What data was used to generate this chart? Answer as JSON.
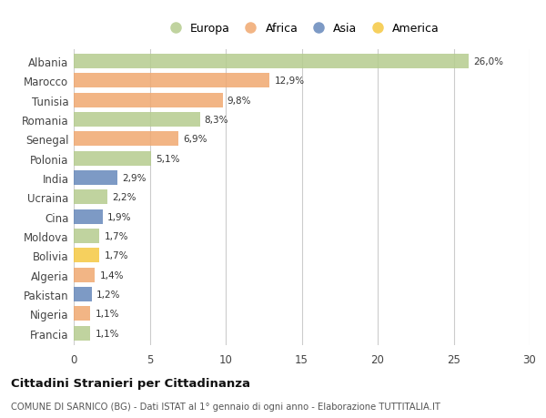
{
  "categories": [
    "Albania",
    "Marocco",
    "Tunisia",
    "Romania",
    "Senegal",
    "Polonia",
    "India",
    "Ucraina",
    "Cina",
    "Moldova",
    "Bolivia",
    "Algeria",
    "Pakistan",
    "Nigeria",
    "Francia"
  ],
  "values": [
    26.0,
    12.9,
    9.8,
    8.3,
    6.9,
    5.1,
    2.9,
    2.2,
    1.9,
    1.7,
    1.7,
    1.4,
    1.2,
    1.1,
    1.1
  ],
  "labels": [
    "26,0%",
    "12,9%",
    "9,8%",
    "8,3%",
    "6,9%",
    "5,1%",
    "2,9%",
    "2,2%",
    "1,9%",
    "1,7%",
    "1,7%",
    "1,4%",
    "1,2%",
    "1,1%",
    "1,1%"
  ],
  "continents": [
    "Europa",
    "Africa",
    "Africa",
    "Europa",
    "Africa",
    "Europa",
    "Asia",
    "Europa",
    "Asia",
    "Europa",
    "America",
    "Africa",
    "Asia",
    "Africa",
    "Europa"
  ],
  "continent_colors": {
    "Europa": "#b5cc8e",
    "Africa": "#f0a870",
    "Asia": "#6688bb",
    "America": "#f5c842"
  },
  "legend_order": [
    "Europa",
    "Africa",
    "Asia",
    "America"
  ],
  "title": "Cittadini Stranieri per Cittadinanza",
  "subtitle": "COMUNE DI SARNICO (BG) - Dati ISTAT al 1° gennaio di ogni anno - Elaborazione TUTTITALIA.IT",
  "xlim": [
    0,
    30
  ],
  "xticks": [
    0,
    5,
    10,
    15,
    20,
    25,
    30
  ],
  "background_color": "#ffffff",
  "bar_height": 0.75,
  "grid_color": "#cccccc"
}
